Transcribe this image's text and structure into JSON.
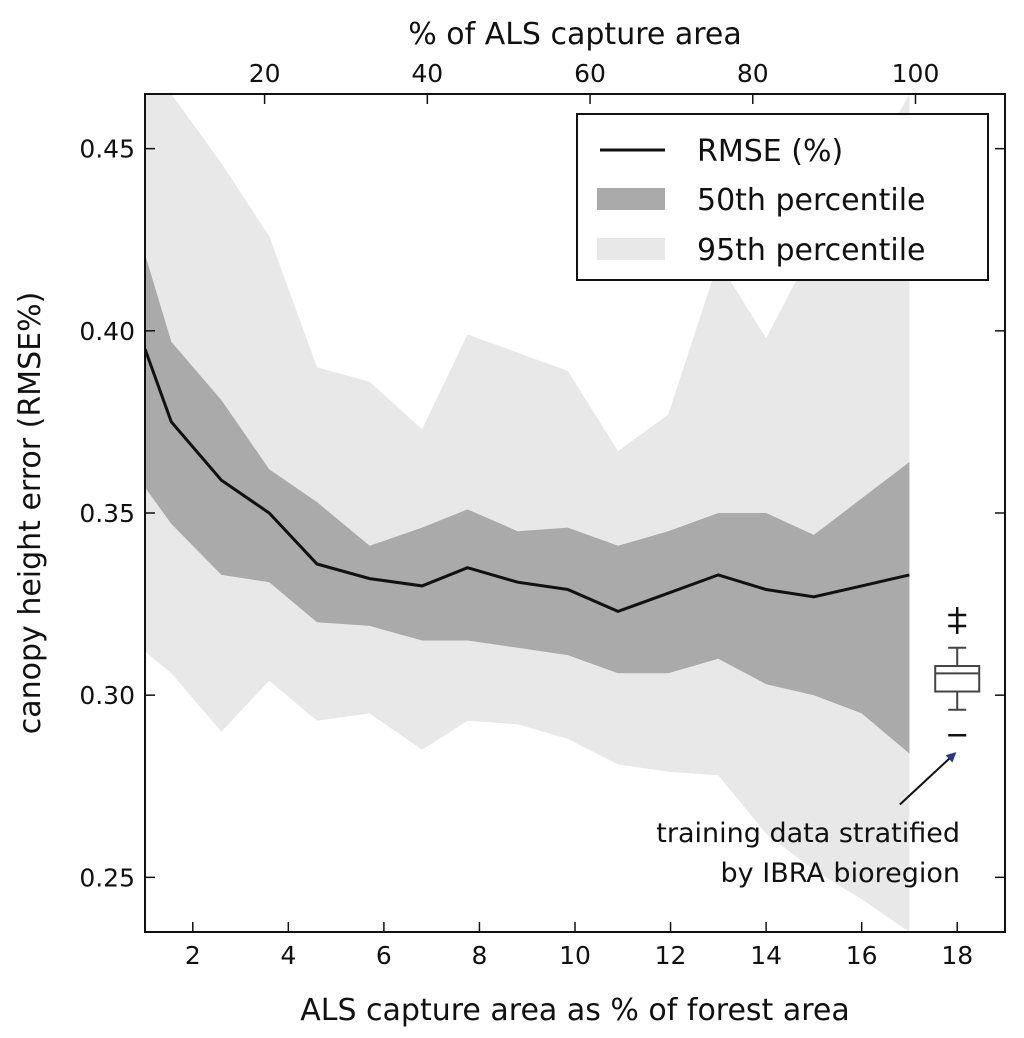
{
  "chart_data": {
    "type": "line",
    "xlabel": "ALS capture area as % of forest area",
    "ylabel": "canopy height error (RMSE%)",
    "top_xlabel": "% of ALS capture area",
    "xlim": [
      1,
      19
    ],
    "ylim": [
      0.235,
      0.465
    ],
    "x_ticks": [
      2,
      4,
      6,
      8,
      10,
      12,
      14,
      16,
      18
    ],
    "x_tick_labels": [
      "2",
      "4",
      "6",
      "8",
      "10",
      "12",
      "14",
      "16",
      "18"
    ],
    "y_ticks": [
      0.25,
      0.3,
      0.35,
      0.4,
      0.45
    ],
    "y_tick_labels": [
      "0.25",
      "0.30",
      "0.35",
      "0.40",
      "0.45"
    ],
    "top_x_ticks": [
      20,
      40,
      60,
      80,
      100
    ],
    "top_x_tick_labels": [
      "20",
      "40",
      "60",
      "80",
      "100"
    ],
    "top_xlim": [
      5.3,
      111
    ],
    "x": [
      1.0,
      1.55,
      2.6,
      3.6,
      4.6,
      5.7,
      6.8,
      7.75,
      8.8,
      9.85,
      10.9,
      11.95,
      13.0,
      14.0,
      15.0,
      16.0,
      17.0
    ],
    "series": [
      {
        "name": "RMSE (%)",
        "kind": "line",
        "color": "#111111",
        "values": [
          0.395,
          0.375,
          0.359,
          0.35,
          0.336,
          0.332,
          0.33,
          0.335,
          0.331,
          0.329,
          0.323,
          0.328,
          0.333,
          0.329,
          0.327,
          0.33,
          0.333
        ]
      },
      {
        "name": "50th percentile",
        "kind": "band",
        "color": "#aaaaaa",
        "upper": [
          0.421,
          0.397,
          0.381,
          0.362,
          0.353,
          0.341,
          0.346,
          0.351,
          0.345,
          0.346,
          0.341,
          0.345,
          0.35,
          0.35,
          0.344,
          0.354,
          0.364
        ],
        "lower": [
          0.357,
          0.347,
          0.333,
          0.331,
          0.32,
          0.319,
          0.315,
          0.315,
          0.313,
          0.311,
          0.306,
          0.306,
          0.31,
          0.303,
          0.3,
          0.295,
          0.284
        ]
      },
      {
        "name": "95th percentile",
        "kind": "band",
        "color": "#e8e8e8",
        "upper": [
          0.465,
          0.465,
          0.446,
          0.426,
          0.39,
          0.386,
          0.373,
          0.399,
          0.394,
          0.389,
          0.367,
          0.377,
          0.419,
          0.398,
          0.423,
          0.441,
          0.465
        ],
        "lower": [
          0.312,
          0.306,
          0.29,
          0.304,
          0.293,
          0.295,
          0.285,
          0.293,
          0.292,
          0.288,
          0.281,
          0.279,
          0.278,
          0.262,
          0.252,
          0.244,
          0.235
        ]
      }
    ],
    "boxplot": {
      "label": "training data stratified by IBRA bioregion",
      "x": 18,
      "q1": 0.301,
      "median": 0.306,
      "q3": 0.308,
      "whisker_low": 0.296,
      "whisker_high": 0.313,
      "outliers": [
        0.319,
        0.322,
        0.289
      ]
    },
    "legend": {
      "placement": "top-right",
      "entries": [
        "RMSE (%)",
        "50th percentile",
        "95th percentile"
      ]
    },
    "annotation": {
      "lines": [
        "training data stratified",
        "by IBRA bioregion"
      ],
      "arrow_to": [
        17.95,
        0.284
      ],
      "arrow_from": [
        16.8,
        0.27
      ],
      "arrow_color": "#1f3a93"
    }
  }
}
